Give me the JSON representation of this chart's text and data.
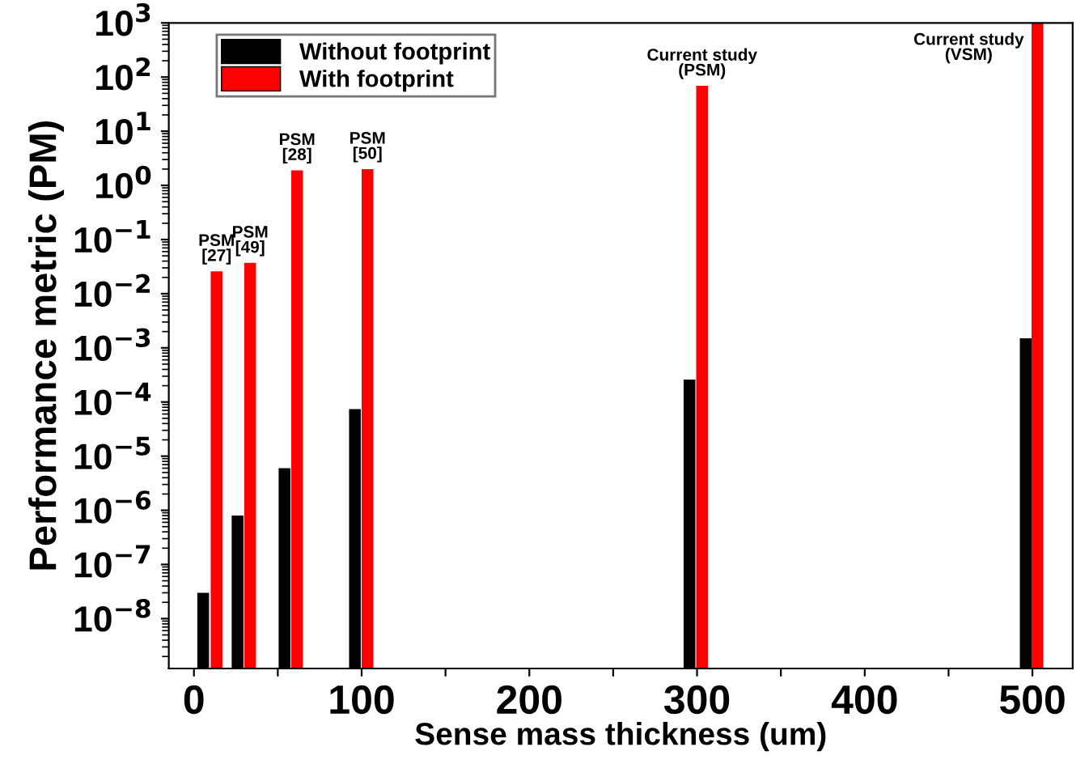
{
  "chart_data": {
    "type": "bar",
    "xlabel": "Sense mass thickness (um)",
    "ylabel": "Performance metric (PM)",
    "series": [
      {
        "name": "Without footprint",
        "color": "#000000",
        "x": [
          5.5,
          26,
          54,
          96,
          295.5,
          496
        ],
        "values": [
          3e-08,
          8e-07,
          6e-06,
          7.4e-05,
          0.00026,
          0.0015
        ]
      },
      {
        "name": "With footprint",
        "color": "#ff0000",
        "x": [
          13.5,
          33.5,
          61.5,
          103.5,
          303,
          503
        ],
        "values": [
          0.026,
          0.037,
          1.9,
          2.0,
          69,
          1000
        ]
      }
    ],
    "log": "y",
    "xlim": [
      -15,
      524
    ],
    "xticks": [
      0,
      {
        "value": 50,
        "label": null
      },
      100,
      {
        "value": 150,
        "label": null
      },
      200,
      {
        "value": 250,
        "label": null
      },
      300,
      {
        "value": 350,
        "label": null
      },
      400,
      {
        "value": 450,
        "label": null
      },
      500
    ],
    "ylim": [
      1.2e-09,
      1000
    ],
    "yticks": [
      {
        "value": 1e-08,
        "label": "10$^{−8}$"
      },
      {
        "value": 1e-07,
        "label": "10$^{−7}$"
      },
      {
        "value": 1e-06,
        "label": "10$^{−6}$"
      },
      {
        "value": 1e-05,
        "label": "10$^{−5}$"
      },
      {
        "value": 0.0001,
        "label": "10$^{−4}$"
      },
      {
        "value": 0.001,
        "label": "10$^{−3}$"
      },
      {
        "value": 0.01,
        "label": "10$^{−2}$"
      },
      {
        "value": 0.1,
        "label": "10$^{−1}$"
      },
      {
        "value": 1,
        "label": "10$^{0}$"
      },
      {
        "value": 10,
        "label": "10$^{1}$"
      },
      {
        "value": 100,
        "label": "10$^{2}$"
      },
      {
        "value": 1000,
        "label": "10$^{3}$"
      }
    ],
    "annotations": [
      {
        "text": "PSM\n[27]",
        "x": 13.5,
        "y": 0.026
      },
      {
        "text": "PSM\n[49]",
        "x": 33.5,
        "y": 0.037
      },
      {
        "text": "PSM\n[28]",
        "x": 61.5,
        "y": 1.9
      },
      {
        "text": "PSM\n[50]",
        "x": 103.5,
        "y": 2.0
      },
      {
        "text": "Current study\n(PSM)",
        "x": 303,
        "y": 69
      },
      "Current study\n(VSM)"
    ],
    "legend": "top left",
    "grid": false
  }
}
